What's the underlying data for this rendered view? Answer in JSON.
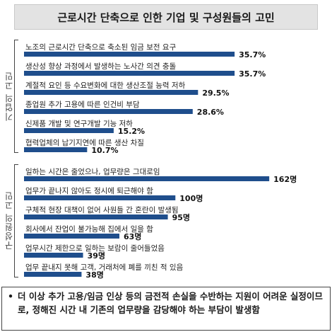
{
  "title": "근로시간 단축으로 인한 기업 및 구성원들의 고민",
  "note": {
    "bullet": "•",
    "text": "더 이상 추가 고용/임금 인상 등의 금전적 손실을 수반하는 지원이 어려운 실정이므로, 정해진 시간 내 기존의 업무량을 감당해야 하는 부담이 발생함"
  },
  "colors": {
    "bar": "#1f4e8c",
    "title_bg": "#e3e3e3"
  },
  "chart_data": [
    {
      "type": "bar",
      "group_label": "기업의 고민",
      "unit": "%",
      "categories": [
        "노조의 근로시간 단축으로 축소된 임금 보전 요구",
        "생산성 향상 과정에서 발생하는 노사간 의견 충돌",
        "계절적 요인 등 수요변화에 대한 생산조절 능력 저하",
        "종업원 추가 고용에 따른 인건비 부담",
        "신제품 개발 및 연구개발 기능 저하",
        "협력업체의 납기지연에 따른 생산 차질"
      ],
      "values": [
        35.7,
        35.7,
        29.5,
        28.6,
        15.2,
        10.7
      ],
      "labels": [
        "35.7%",
        "35.7%",
        "29.5%",
        "28.6%",
        "15.2%",
        "10.7%"
      ],
      "xlim": [
        0,
        40
      ]
    },
    {
      "type": "bar",
      "group_label": "구성원의 고민",
      "unit": "명",
      "categories": [
        "일하는 시간은 줄었으나, 업무량은 그대로임",
        "업무가 끝나지 않아도 정시에 퇴근해야 함",
        "구체적 현장 대책이 없어 사원들 간 혼란이 발생됨",
        "회사에서 잔업이 불가능해 집에서 일을 함",
        "업무시간 제한으로 일하는 보람이 줄어들었음",
        "업무 끝내지 못해 고객, 거래처에 폐를 끼친 적 있음"
      ],
      "values": [
        162,
        100,
        95,
        63,
        39,
        38
      ],
      "labels": [
        "162명",
        "100명",
        "95명",
        "63명",
        "39명",
        "38명"
      ],
      "xlim": [
        0,
        175
      ]
    }
  ]
}
